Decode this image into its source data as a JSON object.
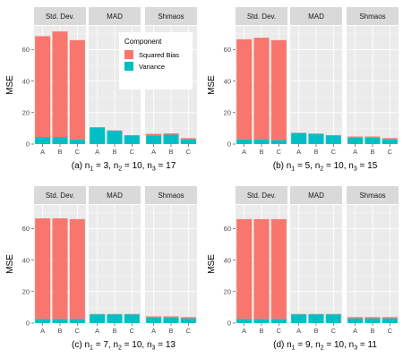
{
  "chart_data": {
    "type": "bar",
    "stacked": true,
    "grid": true,
    "ylabel": "MSE",
    "ylim": [
      0,
      75
    ],
    "yticks": [
      0,
      20,
      40,
      60
    ],
    "facets": [
      "Std. Dev.",
      "MAD",
      "Shmaos"
    ],
    "categories": [
      "A",
      "B",
      "C"
    ],
    "legend": {
      "title": "Component",
      "placement": "inside-top-right of panel (a)",
      "items": [
        {
          "name": "Squared Bias",
          "color": "#F8766D"
        },
        {
          "name": "Variance",
          "color": "#00BFC4"
        }
      ]
    },
    "panels": [
      {
        "caption_prefix": "(a)",
        "ns": [
          "3",
          "10",
          "17"
        ],
        "facets": {
          "Std. Dev.": {
            "variance": [
              4.5,
              4.5,
              3.0
            ],
            "squared_bias": [
              64,
              67,
              63
            ]
          },
          "MAD": {
            "variance": [
              10.5,
              8.5,
              5.5
            ],
            "squared_bias": [
              0.2,
              0.2,
              0.2
            ]
          },
          "Shmaos": {
            "variance": [
              5.5,
              6.0,
              3.0
            ],
            "squared_bias": [
              1.0,
              0.8,
              0.8
            ]
          }
        }
      },
      {
        "caption_prefix": "(b)",
        "ns": [
          "5",
          "10",
          "15"
        ],
        "facets": {
          "Std. Dev.": {
            "variance": [
              3.0,
              3.0,
              2.5
            ],
            "squared_bias": [
              63.5,
              64.5,
              63.5
            ]
          },
          "MAD": {
            "variance": [
              7.0,
              6.5,
              5.5
            ],
            "squared_bias": [
              0.2,
              0.2,
              0.2
            ]
          },
          "Shmaos": {
            "variance": [
              4.0,
              4.0,
              3.0
            ],
            "squared_bias": [
              0.8,
              0.8,
              0.8
            ]
          }
        }
      },
      {
        "caption_prefix": "(c)",
        "ns": [
          "7",
          "10",
          "13"
        ],
        "facets": {
          "Std. Dev.": {
            "variance": [
              2.5,
              2.5,
              2.5
            ],
            "squared_bias": [
              64,
              64,
              63.5
            ]
          },
          "MAD": {
            "variance": [
              5.5,
              5.5,
              5.5
            ],
            "squared_bias": [
              0.3,
              0.3,
              0.3
            ]
          },
          "Shmaos": {
            "variance": [
              3.5,
              3.5,
              3.0
            ],
            "squared_bias": [
              0.8,
              0.8,
              0.8
            ]
          }
        }
      },
      {
        "caption_prefix": "(d)",
        "ns": [
          "9",
          "10",
          "11"
        ],
        "facets": {
          "Std. Dev.": {
            "variance": [
              2.5,
              2.5,
              2.5
            ],
            "squared_bias": [
              63.5,
              63.5,
              63.5
            ]
          },
          "MAD": {
            "variance": [
              5.5,
              5.5,
              5.5
            ],
            "squared_bias": [
              0.3,
              0.3,
              0.3
            ]
          },
          "Shmaos": {
            "variance": [
              3.0,
              3.0,
              3.0
            ],
            "squared_bias": [
              0.8,
              0.8,
              0.8
            ]
          }
        }
      }
    ]
  },
  "colors": {
    "panel_background": "#EBEBEB",
    "strip_background": "#D9D9D9",
    "grid_major": "#FFFFFF"
  }
}
